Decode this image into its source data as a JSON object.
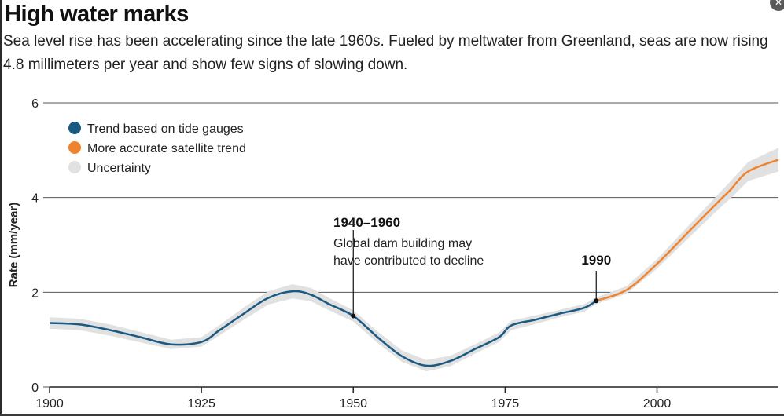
{
  "header": {
    "title": "High water marks",
    "subtitle": "Sea level rise has been accelerating since the late 1960s. Fueled by meltwater from Greenland, seas are now rising 4.8 millimeters per year and show few signs of slowing down."
  },
  "chart_data": {
    "type": "line",
    "ylabel": "Rate (mm/year)",
    "xlabel": "",
    "xlim": [
      1900,
      2020
    ],
    "ylim": [
      0,
      6
    ],
    "x_ticks": [
      1900,
      1925,
      1950,
      1975,
      2000
    ],
    "y_ticks": [
      0,
      2,
      4,
      6
    ],
    "grid": "horizontal",
    "legend": {
      "placement": "top-left",
      "items": [
        {
          "label": "Trend based on tide gauges",
          "color": "#1a5a82"
        },
        {
          "label": "More accurate satellite trend",
          "color": "#f0832d"
        },
        {
          "label": "Uncertainty",
          "color": "#e1e1e1"
        }
      ]
    },
    "series": [
      {
        "name": "Trend based on tide gauges",
        "color": "#1a5a82",
        "x": [
          1900,
          1905,
          1910,
          1915,
          1920,
          1925,
          1928,
          1932,
          1936,
          1940,
          1943,
          1946,
          1950,
          1954,
          1958,
          1962,
          1966,
          1970,
          1974,
          1976,
          1980,
          1984,
          1988,
          1990
        ],
        "values": [
          1.35,
          1.32,
          1.2,
          1.05,
          0.9,
          0.95,
          1.2,
          1.55,
          1.88,
          2.02,
          1.95,
          1.75,
          1.5,
          1.05,
          0.65,
          0.45,
          0.55,
          0.8,
          1.05,
          1.3,
          1.42,
          1.55,
          1.67,
          1.82
        ],
        "uncertainty": [
          0.12,
          0.12,
          0.12,
          0.11,
          0.1,
          0.1,
          0.11,
          0.13,
          0.14,
          0.15,
          0.14,
          0.13,
          0.12,
          0.12,
          0.12,
          0.12,
          0.11,
          0.1,
          0.1,
          0.1,
          0.09,
          0.08,
          0.08,
          0.07
        ]
      },
      {
        "name": "More accurate satellite trend",
        "color": "#f0832d",
        "x": [
          1990,
          1995,
          2000,
          2005,
          2010,
          2012,
          2015,
          2020
        ],
        "values": [
          1.82,
          2.05,
          2.6,
          3.25,
          3.9,
          4.15,
          4.55,
          4.8
        ],
        "uncertainty": [
          0.07,
          0.08,
          0.1,
          0.13,
          0.16,
          0.18,
          0.2,
          0.25
        ]
      }
    ],
    "annotations": [
      {
        "heading": "1940–1960",
        "body": [
          "Global dam building may",
          "have contributed to decline"
        ],
        "x": 1950,
        "y": 1.5
      },
      {
        "heading": "1990",
        "body": [],
        "x": 1990,
        "y": 1.82
      }
    ]
  }
}
